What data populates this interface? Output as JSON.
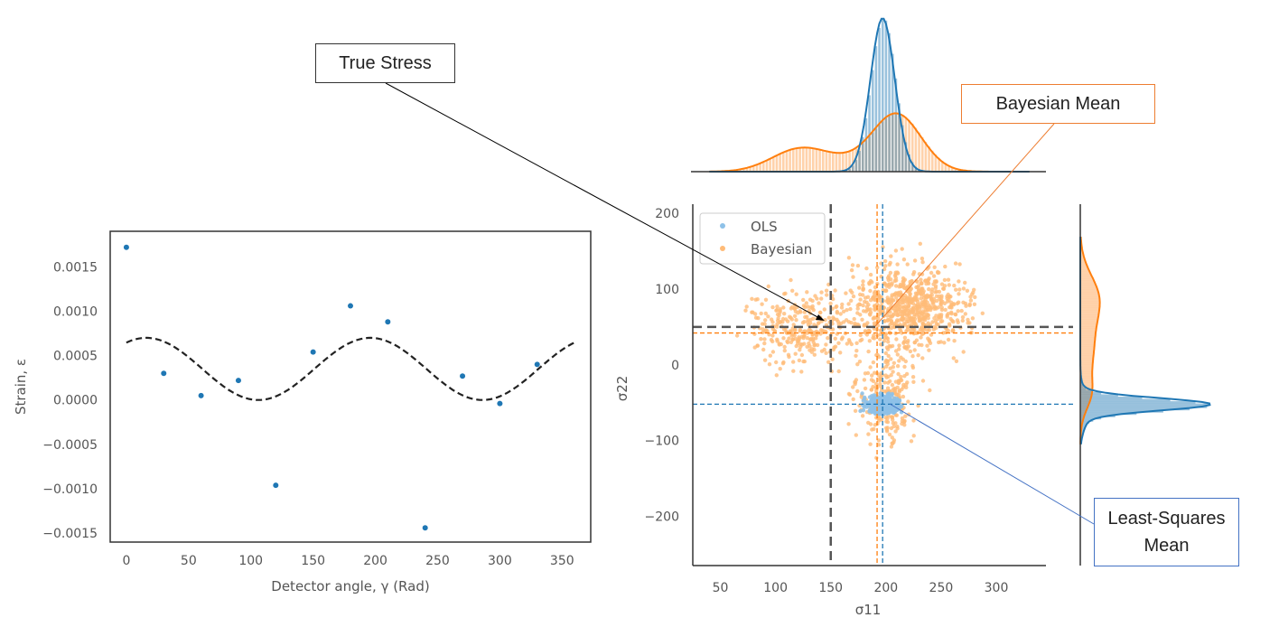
{
  "colors": {
    "ols": "#1f77b4",
    "bayes": "#ff7f0e",
    "true": "#555555",
    "ols_point": "#8ec1e8",
    "bayes_point": "#ffbb78"
  },
  "chart_data": [
    {
      "type": "scatter",
      "xlabel": "Detector angle, γ (Rad)",
      "ylabel": "Strain, ε",
      "xlim": [
        -13,
        373
      ],
      "ylim": [
        -0.0016,
        0.0019
      ],
      "xticks": [
        0,
        50,
        100,
        150,
        200,
        250,
        300,
        350
      ],
      "xtick_labels": [
        "0",
        "50",
        "100",
        "150",
        "200",
        "250",
        "300",
        "350"
      ],
      "yticks": [
        0.0015,
        0.001,
        0.0005,
        0.0,
        -0.0005,
        -0.001,
        -0.0015
      ],
      "ytick_labels": [
        "0.0015",
        "0.0010",
        "0.0005",
        "0.0000",
        "−0.0005",
        "−0.0010",
        "−0.0015"
      ],
      "grid": false,
      "points": {
        "x": [
          0,
          30,
          60,
          90,
          120,
          150,
          180,
          210,
          240,
          270,
          300,
          330
        ],
        "y": [
          0.00172,
          0.0003,
          5e-05,
          0.00022,
          -0.00096,
          0.00054,
          0.00106,
          0.00088,
          -0.00144,
          0.00027,
          -4e-05,
          0.0004
        ]
      },
      "fit_curve": {
        "style": "dashed",
        "color": "#222222",
        "mean": 0.00035,
        "amplitude": 0.00035,
        "peak_x": 196,
        "period": 180,
        "x_range": [
          0,
          360
        ]
      }
    },
    {
      "type": "scatter",
      "xlabel": "σ11",
      "ylabel": "σ22",
      "xlim": [
        25,
        345
      ],
      "ylim": [
        -265,
        212
      ],
      "xticks": [
        50,
        100,
        150,
        200,
        250,
        300
      ],
      "xtick_labels": [
        "50",
        "100",
        "150",
        "200",
        "250",
        "300"
      ],
      "yticks": [
        200,
        100,
        0,
        -100,
        -200
      ],
      "ytick_labels": [
        "200",
        "100",
        "0",
        "−100",
        "−200"
      ],
      "grid": false,
      "legend": {
        "placement": "top-left",
        "entries": [
          "OLS",
          "Bayesian"
        ]
      },
      "series": [
        {
          "name": "OLS",
          "center": [
            198,
            -52
          ],
          "spread": [
            14,
            9
          ]
        },
        {
          "name": "Bayesian",
          "center": [
            196,
            42
          ],
          "spread": [
            38,
            62
          ]
        }
      ],
      "reference_lines": {
        "true_stress": {
          "x": 150,
          "y": 50
        },
        "bayesian_mean": {
          "x": 192,
          "y": 42
        },
        "least_squares_mean": {
          "x": 197,
          "y": -52
        }
      },
      "marginal_top": {
        "orientation": "horizontal",
        "series": [
          "OLS",
          "Bayesian"
        ]
      },
      "marginal_right": {
        "orientation": "vertical",
        "series": [
          "OLS",
          "Bayesian"
        ]
      }
    }
  ],
  "callouts": {
    "true_stress": "True Stress",
    "bayesian_mean": "Bayesian Mean",
    "least_squares_mean_line1": "Least-Squares",
    "least_squares_mean_line2": "Mean"
  }
}
